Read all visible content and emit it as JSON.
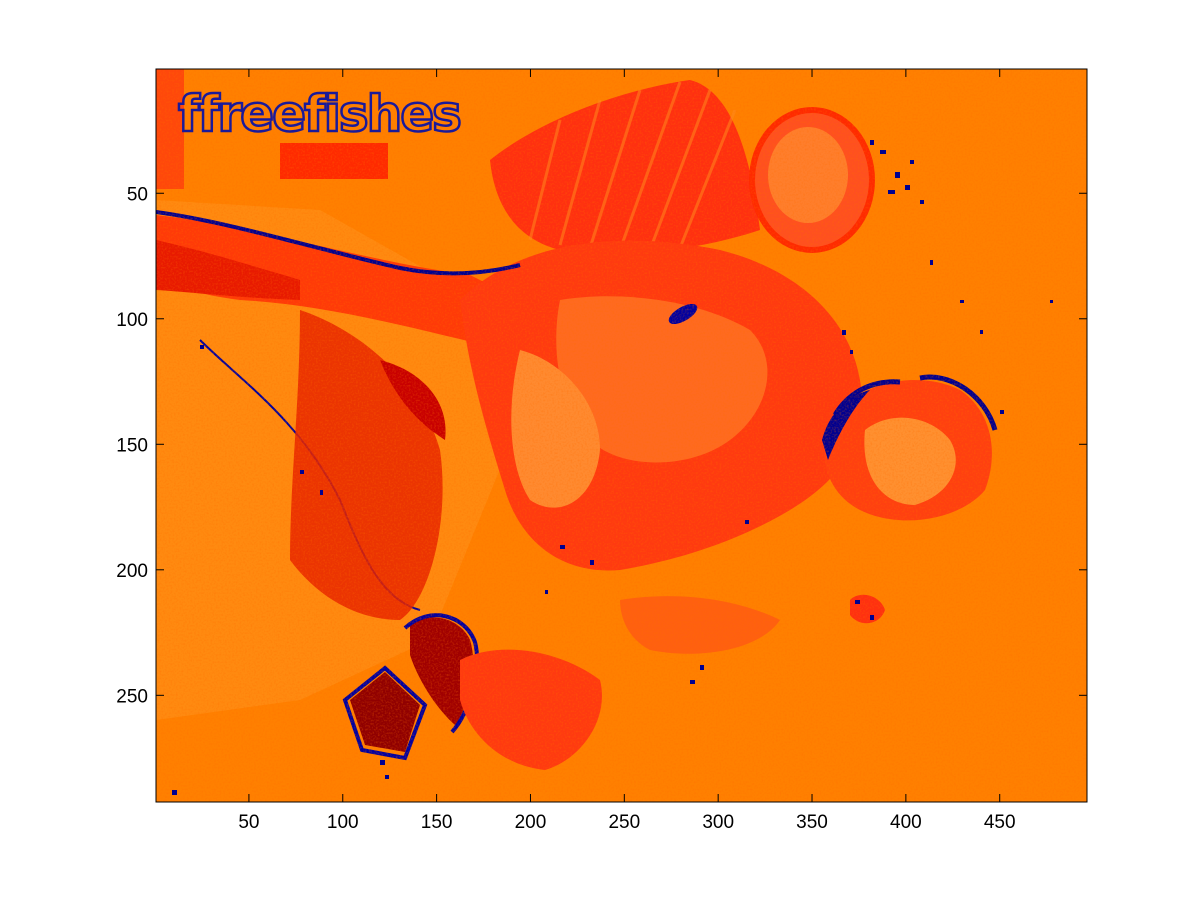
{
  "figure": {
    "background": "#ffffff"
  },
  "image": {
    "colormap": [
      "#000080",
      "#0000c0",
      "#800000",
      "#c00000",
      "#ff2000",
      "#ff4a10",
      "#ff6a00",
      "#ff8000",
      "#ff9020"
    ],
    "dominant_color": "#ff8000",
    "watermark_text": "ffreefishes",
    "watermark_color": "#1a1a9a"
  },
  "x_axis": {
    "ticks": [
      50,
      100,
      150,
      200,
      250,
      300,
      350,
      400,
      450
    ],
    "range": [
      0.5,
      496.5
    ]
  },
  "y_axis": {
    "ticks": [
      50,
      100,
      150,
      200,
      250
    ],
    "range": [
      0.5,
      292.5
    ]
  }
}
